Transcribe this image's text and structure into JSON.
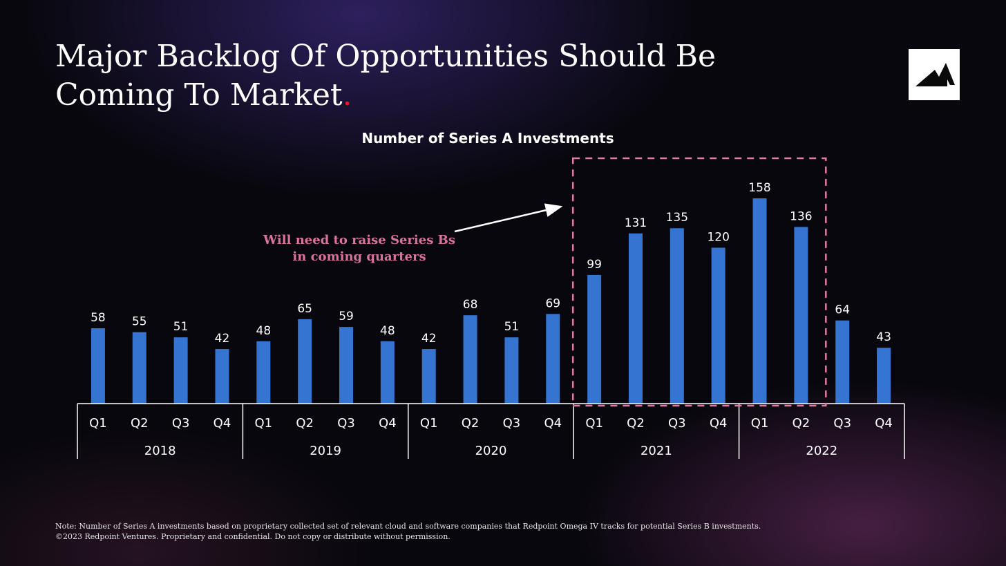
{
  "slide": {
    "title_main": "Major Backlog Of Opportunities Should Be Coming To Market",
    "title_dot": ".",
    "callout_line1": "Will need to raise Series Bs",
    "callout_line2": "in coming quarters",
    "note_line1": "Note: Number of Series A investments based on proprietary collected set of relevant cloud and software companies that Redpoint Omega IV tracks for potential Series B investments.",
    "note_line2": "©2023 Redpoint Ventures. Proprietary and confidential. Do not copy or distribute without permission.",
    "logo_icon": "mountain-logo-icon"
  },
  "chart_data": {
    "type": "bar",
    "title": "Number of Series A Investments",
    "categories": [
      "Q1",
      "Q2",
      "Q3",
      "Q4",
      "Q1",
      "Q2",
      "Q3",
      "Q4",
      "Q1",
      "Q2",
      "Q3",
      "Q4",
      "Q1",
      "Q2",
      "Q3",
      "Q4",
      "Q1",
      "Q2",
      "Q3",
      "Q4"
    ],
    "years": [
      "2018",
      "2019",
      "2020",
      "2021",
      "2022"
    ],
    "series": [
      {
        "values": [
          58,
          55,
          51,
          42,
          48,
          65,
          59,
          48,
          42,
          68,
          51,
          69,
          99,
          131,
          135,
          120,
          158,
          136,
          64,
          43
        ]
      }
    ],
    "ylim": [
      0,
      160
    ],
    "highlight_range": [
      12,
      17
    ],
    "bar_color": "#3574d1",
    "highlight_color": "#e07aa8",
    "axis_color": "#ffffff"
  }
}
